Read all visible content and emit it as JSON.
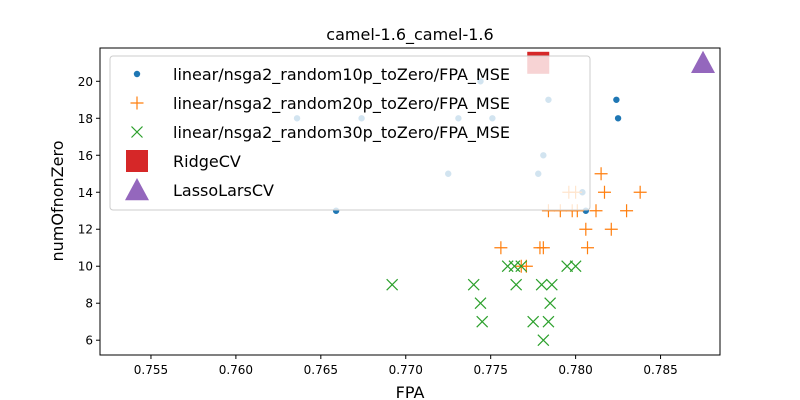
{
  "chart_data": {
    "type": "scatter",
    "title": "camel-1.6_camel-1.6",
    "xlabel": "FPA",
    "ylabel": "numOfnonZero",
    "xlim": [
      0.752,
      0.7885
    ],
    "ylim": [
      5.2,
      21.8
    ],
    "xticks": [
      "0.755",
      "0.760",
      "0.765",
      "0.770",
      "0.775",
      "0.780",
      "0.785"
    ],
    "yticks": [
      "6",
      "8",
      "10",
      "12",
      "14",
      "16",
      "18",
      "20"
    ],
    "grid": false,
    "legend_position": "upper-left",
    "series": [
      {
        "name": "linear/nsga2_random10p_toZero/FPA_MSE",
        "marker": "dot",
        "color": "#1f77b4",
        "points": [
          [
            0.7636,
            18
          ],
          [
            0.7659,
            13
          ],
          [
            0.7674,
            18
          ],
          [
            0.7725,
            15
          ],
          [
            0.7731,
            18
          ],
          [
            0.7744,
            20
          ],
          [
            0.7751,
            18
          ],
          [
            0.7778,
            15
          ],
          [
            0.7781,
            16
          ],
          [
            0.7784,
            19
          ],
          [
            0.7804,
            14
          ],
          [
            0.7806,
            13
          ],
          [
            0.7824,
            19
          ],
          [
            0.7825,
            18
          ]
        ]
      },
      {
        "name": "linear/nsga2_random20p_toZero/FPA_MSE",
        "marker": "plus",
        "color": "#ff7f0e",
        "points": [
          [
            0.7756,
            11
          ],
          [
            0.7768,
            10
          ],
          [
            0.7771,
            10
          ],
          [
            0.7779,
            11
          ],
          [
            0.7781,
            11
          ],
          [
            0.7784,
            13
          ],
          [
            0.7791,
            13
          ],
          [
            0.7796,
            14
          ],
          [
            0.7798,
            13
          ],
          [
            0.78,
            14
          ],
          [
            0.7801,
            13
          ],
          [
            0.7806,
            12
          ],
          [
            0.7807,
            11
          ],
          [
            0.7812,
            13
          ],
          [
            0.7815,
            15
          ],
          [
            0.7817,
            14
          ],
          [
            0.7821,
            12
          ],
          [
            0.783,
            13
          ],
          [
            0.7838,
            14
          ]
        ]
      },
      {
        "name": "linear/nsga2_random30p_toZero/FPA_MSE",
        "marker": "x",
        "color": "#2ca02c",
        "points": [
          [
            0.7692,
            9
          ],
          [
            0.774,
            9
          ],
          [
            0.7744,
            8
          ],
          [
            0.7745,
            7
          ],
          [
            0.776,
            10
          ],
          [
            0.7764,
            10
          ],
          [
            0.7765,
            9
          ],
          [
            0.7768,
            10
          ],
          [
            0.7775,
            7
          ],
          [
            0.778,
            9
          ],
          [
            0.7781,
            6
          ],
          [
            0.7784,
            7
          ],
          [
            0.7785,
            8
          ],
          [
            0.7786,
            9
          ],
          [
            0.7795,
            10
          ],
          [
            0.78,
            10
          ]
        ]
      },
      {
        "name": "RidgeCV",
        "marker": "square",
        "color": "#d62728",
        "points": [
          [
            0.7778,
            21
          ]
        ]
      },
      {
        "name": "LassoLarsCV",
        "marker": "triangle",
        "color": "#9467bd",
        "points": [
          [
            0.7875,
            21
          ]
        ]
      }
    ]
  }
}
